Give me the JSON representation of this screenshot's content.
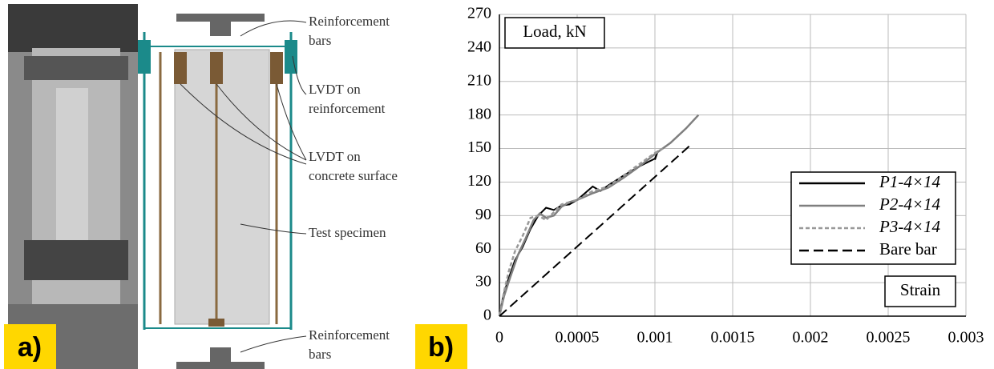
{
  "panel_labels": [
    "a)",
    "b)"
  ],
  "diagram": {
    "labels": [
      {
        "lines": [
          "Reinforcement",
          "bars"
        ]
      },
      {
        "lines": [
          "LVDT on",
          "reinforcement"
        ]
      },
      {
        "lines": [
          "LVDT on",
          "concrete surface"
        ]
      },
      {
        "lines": [
          "Test specimen"
        ]
      },
      {
        "lines": [
          "Reinforcement",
          "bars"
        ]
      }
    ]
  },
  "chart_data": {
    "type": "line",
    "y_label": "Load, kN",
    "x_label": "Strain",
    "xlim": [
      0,
      0.003
    ],
    "xticks": [
      0,
      0.0005,
      0.001,
      0.0015,
      0.002,
      0.0025,
      0.003
    ],
    "ylim": [
      0,
      270
    ],
    "yticks": [
      0,
      30,
      60,
      90,
      120,
      150,
      180,
      210,
      240,
      270
    ],
    "grid": true,
    "legend": "right",
    "series": [
      {
        "name": "P1-4×14",
        "color": "#000000",
        "dash": "solid",
        "x": [
          0,
          2e-05,
          5e-05,
          0.0001,
          0.00015,
          0.0002,
          0.00025,
          0.0003,
          0.00035,
          0.0004,
          0.00045,
          0.0005,
          0.00055,
          0.0006,
          0.00065,
          0.0007,
          0.0008,
          0.0009,
          0.001,
          0.00102,
          0.001
        ],
        "values": [
          0,
          15,
          30,
          50,
          62,
          78,
          90,
          97,
          95,
          99,
          100,
          104,
          110,
          116,
          112,
          117,
          126,
          134,
          141,
          148,
          140
        ]
      },
      {
        "name": "P2-4×14",
        "color": "#7f7f7f",
        "dash": "solid",
        "x": [
          0,
          3e-05,
          7e-05,
          0.00012,
          0.00017,
          0.00022,
          0.00026,
          0.0003,
          0.00035,
          0.0004,
          0.00045,
          0.0005,
          0.0006,
          0.0007,
          0.0008,
          0.0009,
          0.001,
          0.0011,
          0.0012,
          0.00128
        ],
        "values": [
          0,
          18,
          35,
          55,
          70,
          86,
          92,
          88,
          90,
          98,
          102,
          104,
          110,
          115,
          124,
          134,
          145,
          155,
          168,
          180
        ]
      },
      {
        "name": "P3-4×14",
        "color": "#999999",
        "dash": "dashed",
        "x": [
          0,
          3e-05,
          6e-05,
          0.0001,
          0.00015,
          0.0002,
          0.00025,
          0.0003,
          0.0004,
          0.0005,
          0.0006,
          0.0007,
          0.0008,
          0.0009,
          0.001,
          0.00105
        ],
        "values": [
          0,
          22,
          40,
          58,
          72,
          88,
          90,
          86,
          100,
          104,
          112,
          116,
          126,
          136,
          146,
          150
        ]
      },
      {
        "name": "Bare bar",
        "color": "#000000",
        "dash": "longdash",
        "x": [
          0,
          0.00122
        ],
        "values": [
          0,
          152
        ]
      }
    ]
  }
}
